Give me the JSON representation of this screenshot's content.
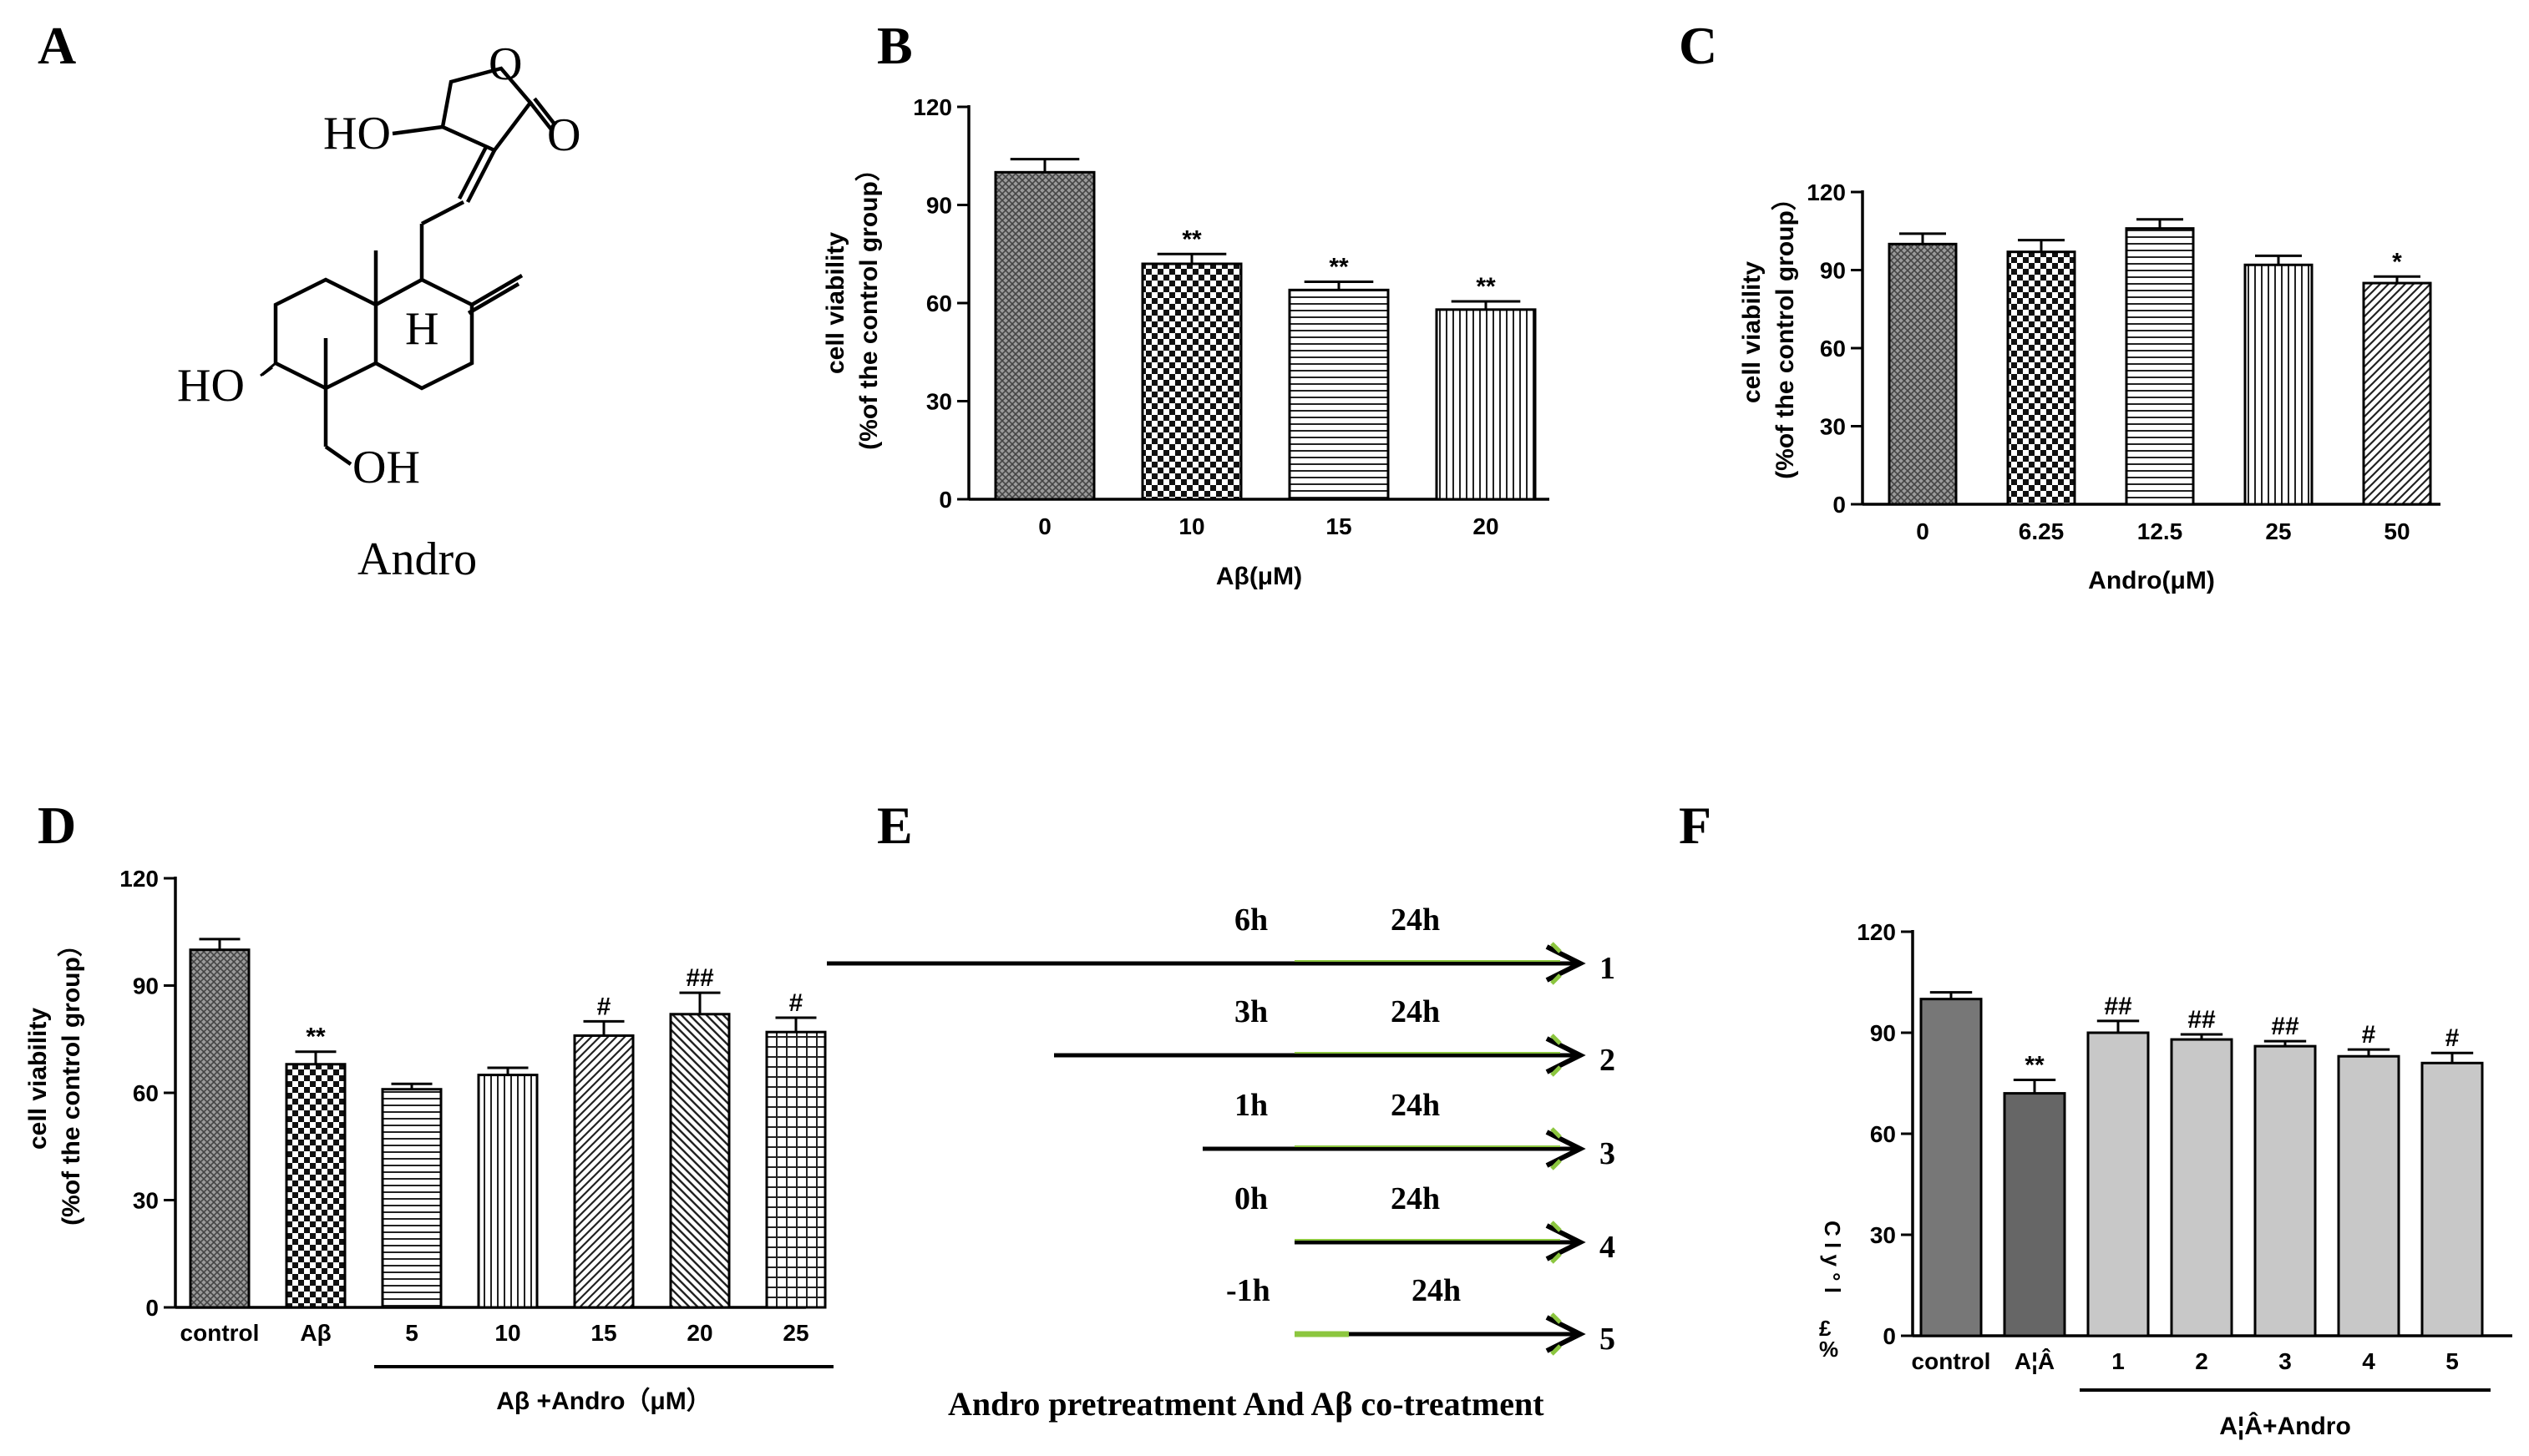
{
  "panel_labels": {
    "A": "A",
    "B": "B",
    "C": "C",
    "D": "D",
    "E": "E",
    "F": "F"
  },
  "structure": {
    "name": "Andro",
    "atoms": {
      "ho_top": "HO",
      "o_ring": "O",
      "o_carbonyl": "O",
      "h": "H",
      "ho_left": "HO",
      "oh": "OH"
    }
  },
  "chart_data": [
    {
      "id": "B",
      "type": "bar",
      "categories": [
        "0",
        "10",
        "15",
        "20"
      ],
      "values": [
        100,
        72,
        64,
        58
      ],
      "errors": [
        4,
        3,
        2.5,
        2.5
      ],
      "annotations": [
        "",
        "**",
        "**",
        "**"
      ],
      "xlabel": "Aβ(μM)",
      "ylabel": [
        "cell viability",
        "(%of the control group）"
      ],
      "ylim": [
        0,
        120
      ],
      "yticks": [
        0,
        30,
        60,
        90,
        120
      ],
      "patterns": [
        "crosshatch",
        "checker",
        "hlines",
        "vlines"
      ]
    },
    {
      "id": "C",
      "type": "bar",
      "categories": [
        "0",
        "6.25",
        "12.5",
        "25",
        "50"
      ],
      "values": [
        100,
        97,
        106,
        92,
        85
      ],
      "errors": [
        4,
        4.5,
        3.5,
        3.5,
        2.5
      ],
      "annotations": [
        "",
        "",
        "",
        "",
        "*"
      ],
      "xlabel": "Andro(μM)",
      "ylabel": [
        "cell viability",
        "(%of the control group）"
      ],
      "ylim": [
        0,
        120
      ],
      "yticks": [
        0,
        30,
        60,
        90,
        120
      ],
      "patterns": [
        "crosshatch",
        "checker",
        "hlines",
        "vlines",
        "diag"
      ]
    },
    {
      "id": "D",
      "type": "bar",
      "categories": [
        "control",
        "Aβ",
        "5",
        "10",
        "15",
        "20",
        "25"
      ],
      "values": [
        100,
        68,
        61,
        65,
        76,
        82,
        77
      ],
      "errors": [
        3,
        3.5,
        1.5,
        2,
        4,
        6,
        4
      ],
      "annotations": [
        "",
        "**",
        "",
        "",
        "#",
        "##",
        "#"
      ],
      "group_label": "Aβ +Andro（μM）",
      "ylabel": [
        "cell viability",
        "(%of the control group）"
      ],
      "ylim": [
        0,
        120
      ],
      "yticks": [
        0,
        30,
        60,
        90,
        120
      ],
      "patterns": [
        "crosshatch",
        "checker",
        "hlines",
        "vlines",
        "diag",
        "diag2",
        "grid"
      ]
    },
    {
      "id": "F",
      "type": "bar",
      "categories": [
        "control",
        "A¦Â",
        "1",
        "2",
        "3",
        "4",
        "5"
      ],
      "values": [
        100,
        72,
        90,
        88,
        86,
        83,
        81
      ],
      "errors": [
        2,
        4,
        3.5,
        1.5,
        1.5,
        2,
        3
      ],
      "annotations": [
        "",
        "**",
        "##",
        "##",
        "##",
        "#",
        "#"
      ],
      "group_label": "A¦Â+Andro",
      "ylabel": [
        "c",
        "£",
        "%"
      ],
      "ylabel_garble": "C  l  y  °  l",
      "yticks": [
        0,
        30,
        60,
        90,
        120
      ],
      "tick_labels": [
        "0",
        "30",
        "60",
        "90",
        "120"
      ],
      "ylim": [
        0,
        120
      ],
      "fills": [
        "#777777",
        "#666666",
        "#c8c8c8",
        "#c8c8c8",
        "#c8c8c8",
        "#c8c8c8",
        "#c8c8c8"
      ]
    }
  ],
  "timeline": {
    "caption": "Andro pretreatment And Aβ co-treatment",
    "rows": [
      {
        "pre": "6h",
        "co": "24h",
        "num": "1"
      },
      {
        "pre": "3h",
        "co": "24h",
        "num": "2"
      },
      {
        "pre": "1h",
        "co": "24h",
        "num": "3"
      },
      {
        "pre": "0h",
        "co": "24h",
        "num": "4"
      },
      {
        "pre": "-1h",
        "co": "24h",
        "num": "5"
      }
    ],
    "colors": {
      "line": "#000000",
      "accent": "#8cc63f"
    }
  }
}
